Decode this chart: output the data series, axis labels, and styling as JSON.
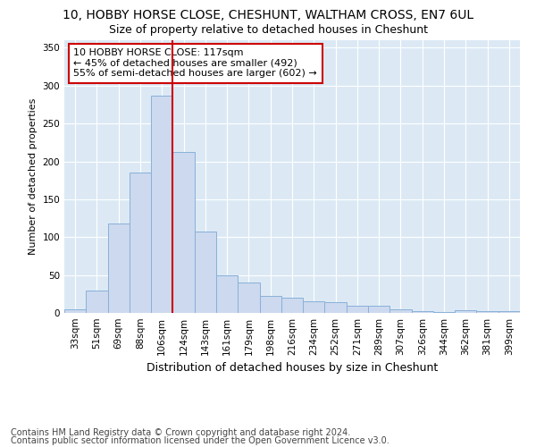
{
  "title1": "10, HOBBY HORSE CLOSE, CHESHUNT, WALTHAM CROSS, EN7 6UL",
  "title2": "Size of property relative to detached houses in Cheshunt",
  "xlabel": "Distribution of detached houses by size in Cheshunt",
  "ylabel": "Number of detached properties",
  "categories": [
    "33sqm",
    "51sqm",
    "69sqm",
    "88sqm",
    "106sqm",
    "124sqm",
    "143sqm",
    "161sqm",
    "179sqm",
    "198sqm",
    "216sqm",
    "234sqm",
    "252sqm",
    "271sqm",
    "289sqm",
    "307sqm",
    "326sqm",
    "344sqm",
    "362sqm",
    "381sqm",
    "399sqm"
  ],
  "values": [
    5,
    30,
    118,
    185,
    287,
    213,
    107,
    50,
    40,
    23,
    20,
    15,
    14,
    10,
    10,
    5,
    2,
    1,
    3,
    2,
    2
  ],
  "bar_color": "#ccd9ee",
  "bar_edge_color": "#8ab0d8",
  "vline_x": 4.5,
  "vline_color": "#cc0000",
  "annotation_text": "10 HOBBY HORSE CLOSE: 117sqm\n← 45% of detached houses are smaller (492)\n55% of semi-detached houses are larger (602) →",
  "annotation_box_color": "#ffffff",
  "annotation_box_edge": "#cc0000",
  "footer1": "Contains HM Land Registry data © Crown copyright and database right 2024.",
  "footer2": "Contains public sector information licensed under the Open Government Licence v3.0.",
  "ylim": [
    0,
    360
  ],
  "yticks": [
    0,
    50,
    100,
    150,
    200,
    250,
    300,
    350
  ],
  "plot_bg_color": "#dce9f5",
  "title1_fontsize": 10,
  "title2_fontsize": 9,
  "xlabel_fontsize": 9,
  "ylabel_fontsize": 8,
  "tick_fontsize": 7.5,
  "footer_fontsize": 7,
  "ann_fontsize": 8
}
